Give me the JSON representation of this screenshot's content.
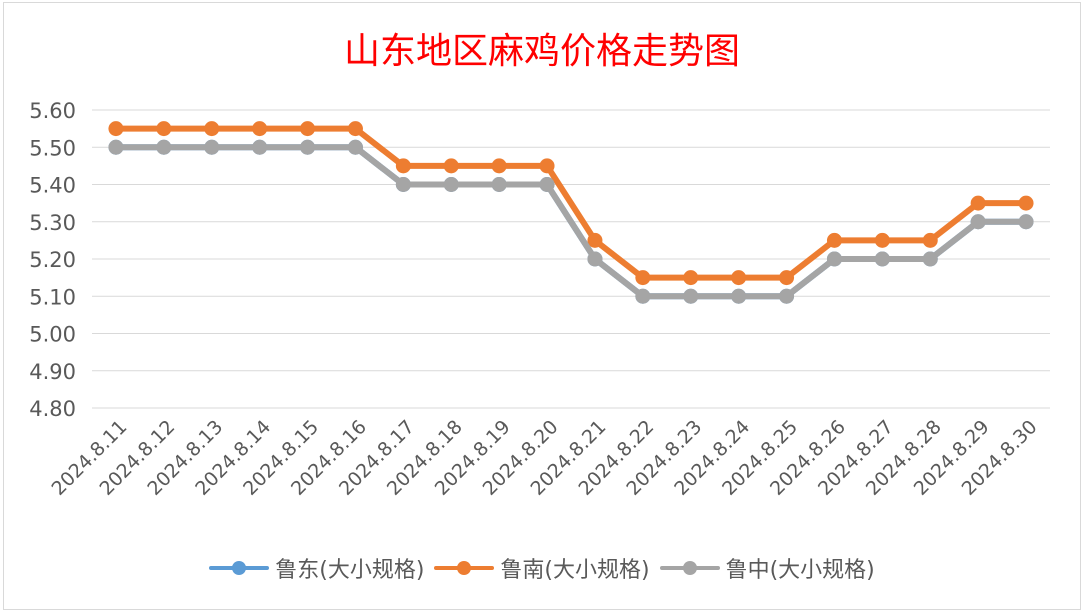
{
  "chart_data": {
    "type": "line",
    "title": "山东地区麻鸡价格走势图",
    "categories": [
      "2024.8.11",
      "2024.8.12",
      "2024.8.13",
      "2024.8.14",
      "2024.8.15",
      "2024.8.16",
      "2024.8.17",
      "2024.8.18",
      "2024.8.19",
      "2024.8.20",
      "2024.8.21",
      "2024.8.22",
      "2024.8.23",
      "2024.8.24",
      "2024.8.25",
      "2024.8.26",
      "2024.8.27",
      "2024.8.28",
      "2024.8.29",
      "2024.8.30"
    ],
    "ylim": [
      4.8,
      5.6
    ],
    "yticks": [
      "5.60",
      "5.50",
      "5.40",
      "5.30",
      "5.20",
      "5.10",
      "5.00",
      "4.90",
      "4.80"
    ],
    "grid": true,
    "legend_position": "bottom",
    "series": [
      {
        "name": "鲁东(大小规格)",
        "color": "#5b9bd5",
        "values": [
          5.5,
          5.5,
          5.5,
          5.5,
          5.5,
          5.5,
          5.4,
          5.4,
          5.4,
          5.4,
          5.2,
          5.1,
          5.1,
          5.1,
          5.1,
          5.2,
          5.2,
          5.2,
          5.3,
          5.3
        ]
      },
      {
        "name": "鲁南(大小规格)",
        "color": "#ed7d31",
        "values": [
          5.55,
          5.55,
          5.55,
          5.55,
          5.55,
          5.55,
          5.45,
          5.45,
          5.45,
          5.45,
          5.25,
          5.15,
          5.15,
          5.15,
          5.15,
          5.25,
          5.25,
          5.25,
          5.35,
          5.35
        ]
      },
      {
        "name": "鲁中(大小规格)",
        "color": "#a5a5a5",
        "values": [
          5.5,
          5.5,
          5.5,
          5.5,
          5.5,
          5.5,
          5.4,
          5.4,
          5.4,
          5.4,
          5.2,
          5.1,
          5.1,
          5.1,
          5.1,
          5.2,
          5.2,
          5.2,
          5.3,
          5.3
        ]
      }
    ]
  }
}
